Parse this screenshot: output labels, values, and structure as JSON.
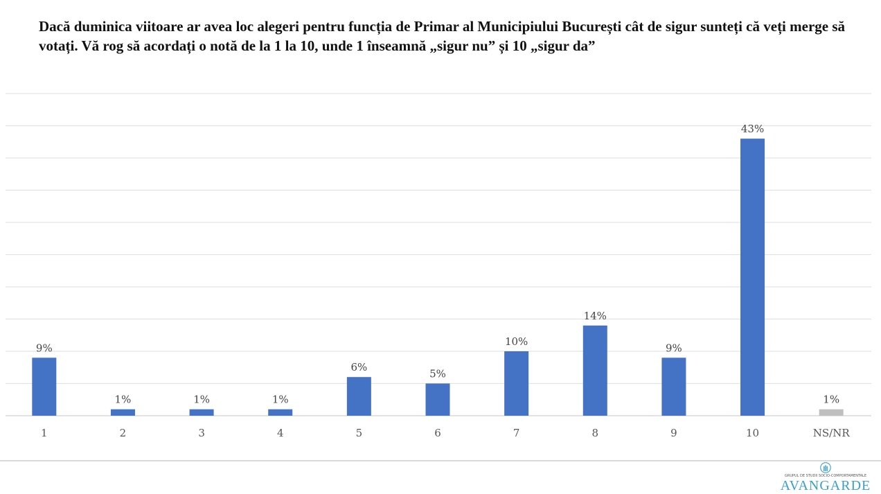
{
  "chart_data": {
    "type": "bar",
    "title": "Dacă duminica viitoare ar avea loc alegeri pentru funcția de Primar al Municipiului București cât de sigur sunteți că veți merge să votați. Vă rog să acordați o notă de la 1 la 10, unde 1 înseamnă „sigur nu” și 10 „sigur da”",
    "categories": [
      "1",
      "2",
      "3",
      "4",
      "5",
      "6",
      "7",
      "8",
      "9",
      "10",
      "NS/NR"
    ],
    "values": [
      9,
      1,
      1,
      1,
      6,
      5,
      10,
      14,
      9,
      43,
      1
    ],
    "labels": [
      "9%",
      "1%",
      "1%",
      "1%",
      "6%",
      "5%",
      "10%",
      "14%",
      "9%",
      "43%",
      "1%"
    ],
    "colors": [
      "#4472c4",
      "#4472c4",
      "#4472c4",
      "#4472c4",
      "#4472c4",
      "#4472c4",
      "#4472c4",
      "#4472c4",
      "#4472c4",
      "#4472c4",
      "#bfbfbf"
    ],
    "ylim": [
      0,
      50
    ],
    "ystep": 5,
    "grid": true,
    "xlabel": "",
    "ylabel": ""
  },
  "logo": {
    "subtitle": "GRUPUL DE STUDII SOCIO-COMPORTAMENTALE",
    "name": "AVANGARDE"
  }
}
